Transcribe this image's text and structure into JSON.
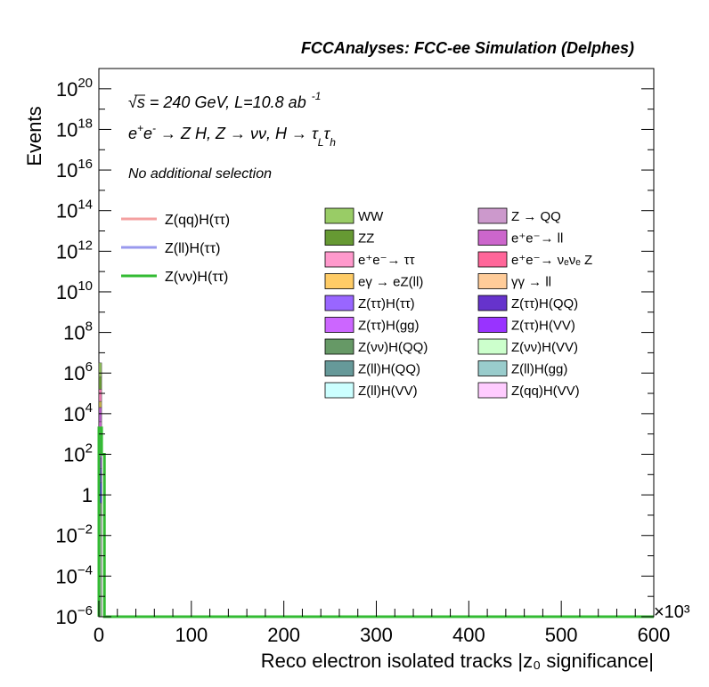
{
  "header": {
    "title": "FCCAnalyses: FCC-ee Simulation (Delphes)"
  },
  "annotations": {
    "line1_sqrt": "√s",
    "line1_rest": " = 240 GeV, L=10.8 ab",
    "line1_exp": "-1",
    "line2_a": "e",
    "line2_sup1": "+",
    "line2_b": "e",
    "line2_sup2": "-",
    "line2_c": " → Z H, Z  → νν, H → τ",
    "line2_sub1": "L",
    "line2_d": "τ",
    "line2_sub2": "h",
    "line3": "No additional selection"
  },
  "chart_data": {
    "type": "histogram",
    "title": "FCCAnalyses: FCC-ee Simulation (Delphes)",
    "xlabel": "Reco electron isolated tracks |z₀ significance|",
    "ylabel": "Events",
    "x_multiplier": "×10³",
    "xlim": [
      0,
      600
    ],
    "ylog": true,
    "ylim_exp": [
      -6,
      21
    ],
    "x_ticks": [
      "0",
      "100",
      "200",
      "300",
      "400",
      "500",
      "600"
    ],
    "y_ticks": [
      {
        "exp": -6,
        "base": "10",
        "sup": "−6"
      },
      {
        "exp": -4,
        "base": "10",
        "sup": "−4"
      },
      {
        "exp": -2,
        "base": "10",
        "sup": "−2"
      },
      {
        "exp": 0,
        "base": "1",
        "sup": ""
      },
      {
        "exp": 2,
        "base": "10",
        "sup": "2"
      },
      {
        "exp": 4,
        "base": "10",
        "sup": "4"
      },
      {
        "exp": 6,
        "base": "10",
        "sup": "6"
      },
      {
        "exp": 8,
        "base": "10",
        "sup": "8"
      },
      {
        "exp": 10,
        "base": "10",
        "sup": "10"
      },
      {
        "exp": 12,
        "base": "10",
        "sup": "12"
      },
      {
        "exp": 14,
        "base": "10",
        "sup": "14"
      },
      {
        "exp": 16,
        "base": "10",
        "sup": "16"
      },
      {
        "exp": 18,
        "base": "10",
        "sup": "18"
      },
      {
        "exp": 20,
        "base": "10",
        "sup": "20"
      }
    ],
    "stack_bin": {
      "x_range": [
        0,
        3
      ]
    },
    "stack_segments": [
      {
        "color": "#8fbc5a",
        "log_lo": 5.8,
        "log_hi": 6.5
      },
      {
        "color": "#6a9a34",
        "log_lo": 5.2,
        "log_hi": 5.8
      },
      {
        "color": "#ee7ab0",
        "log_lo": 4.6,
        "log_hi": 5.2
      },
      {
        "color": "#c8b04a",
        "log_lo": 4.3,
        "log_hi": 4.6
      },
      {
        "color": "#b85cc8",
        "log_lo": 3.6,
        "log_hi": 4.3
      },
      {
        "color": "#cc66cc",
        "log_lo": 2.8,
        "log_hi": 3.6
      },
      {
        "color": "#9b59d0",
        "log_lo": 1.8,
        "log_hi": 2.8
      },
      {
        "color": "#7a3fb5",
        "log_lo": 1.3,
        "log_hi": 1.8
      },
      {
        "color": "#5a3fb5",
        "log_lo": 0.6,
        "log_hi": 1.3
      },
      {
        "color": "#3a2fd0",
        "log_lo": -0.4,
        "log_hi": 0.6
      },
      {
        "color": "#6d8f6d",
        "log_lo": -1.0,
        "log_hi": -0.4
      },
      {
        "color": "#8fb58f",
        "log_lo": -6,
        "log_hi": -1.0
      }
    ],
    "signal_lines": [
      {
        "name": "Z(qq)H(ττ)",
        "color": "#f4a0a0"
      },
      {
        "name": "Z(ll)H(ττ)",
        "color": "#9999ee"
      },
      {
        "name": "Z(νν)H(ττ)",
        "color": "#33bb33",
        "steps": [
          {
            "x0": 0,
            "x1": 3,
            "log_y": 3.3
          },
          {
            "x0": 3,
            "x1": 6,
            "log_y": 2.0
          },
          {
            "x0": 6,
            "x1": 600,
            "log_y": -6
          }
        ]
      }
    ],
    "legend_lines": [
      {
        "name": "Z(qq)H(ττ)",
        "color": "#f4a0a0"
      },
      {
        "name": "Z(ll)H(ττ)",
        "color": "#9999ee"
      },
      {
        "name": "Z(νν)H(ττ)",
        "color": "#33bb33"
      }
    ],
    "legend_backgrounds": [
      {
        "name": "WW",
        "color": "#99cc66"
      },
      {
        "name": "Z → QQ",
        "color": "#cc99cc"
      },
      {
        "name": "ZZ",
        "color": "#669933"
      },
      {
        "name": "e⁺e⁻→ ll",
        "color": "#cc66cc"
      },
      {
        "name": "e⁺e⁻→ ττ",
        "color": "#ff99cc"
      },
      {
        "name": "e⁺e⁻→ νₑνₑ Z",
        "color": "#ff6699"
      },
      {
        "name": "eγ → eZ(ll)",
        "color": "#ffcc66"
      },
      {
        "name": "γγ → ll",
        "color": "#ffcc99"
      },
      {
        "name": "Z(ττ)H(ττ)",
        "color": "#9966ff"
      },
      {
        "name": "Z(ττ)H(QQ)",
        "color": "#6633cc"
      },
      {
        "name": "Z(ττ)H(gg)",
        "color": "#cc66ff"
      },
      {
        "name": "Z(ττ)H(VV)",
        "color": "#9933ff"
      },
      {
        "name": "Z(νν)H(QQ)",
        "color": "#669966"
      },
      {
        "name": "Z(νν)H(VV)",
        "color": "#ccffcc"
      },
      {
        "name": "Z(ll)H(QQ)",
        "color": "#669999"
      },
      {
        "name": "Z(ll)H(gg)",
        "color": "#99cccc"
      },
      {
        "name": "Z(ll)H(VV)",
        "color": "#ccffff"
      },
      {
        "name": "Z(qq)H(VV)",
        "color": "#ffccff"
      }
    ]
  }
}
